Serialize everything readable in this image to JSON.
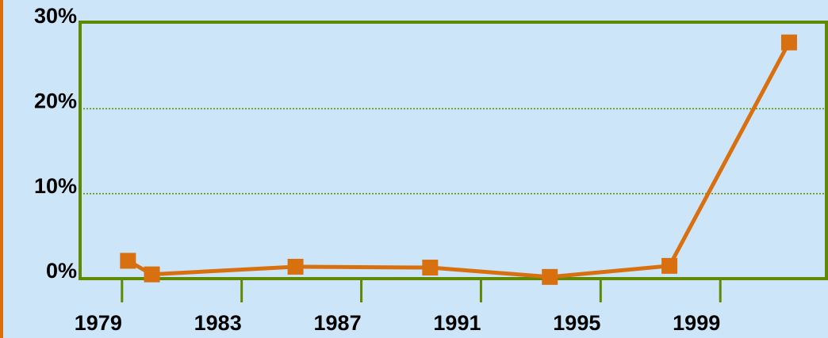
{
  "chart_data": {
    "type": "line",
    "x": [
      1979.2,
      1980,
      1984.8,
      1989.3,
      1993.3,
      1997.3,
      2001.3
    ],
    "series": [
      {
        "color": "#d9700f",
        "values": [
          2.1,
          0.5,
          1.4,
          1.3,
          0.2,
          1.5,
          27.8
        ]
      }
    ],
    "xlim": [
      1977.6,
      2002.6
    ],
    "xticks": [
      1979,
      1983,
      1987,
      1991,
      1995,
      1999
    ],
    "ylim": [
      0,
      30
    ],
    "yticks": [
      {
        "value": 0,
        "label": "0%"
      },
      {
        "value": 10,
        "label": "10%"
      },
      {
        "value": 20,
        "label": "20%"
      },
      {
        "value": 30,
        "label": "30%"
      }
    ],
    "grid": true
  }
}
